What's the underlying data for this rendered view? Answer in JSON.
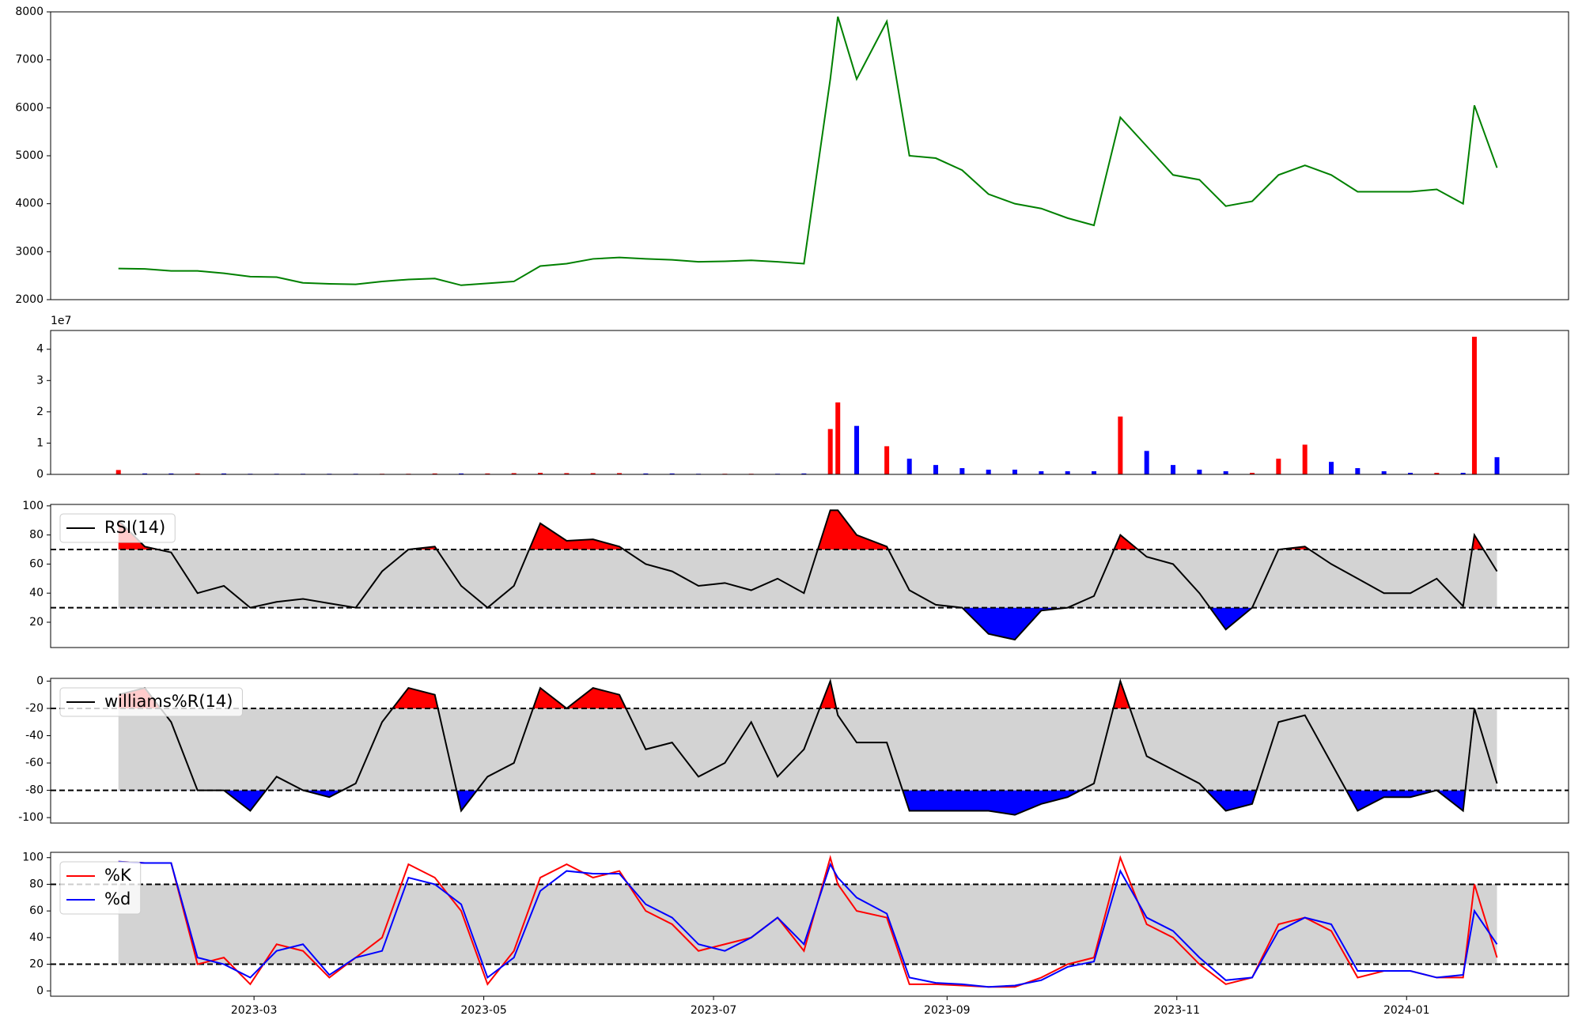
{
  "chart_data": [
    {
      "type": "line",
      "x": [
        "2023-01-24",
        "2023-01-31",
        "2023-02-07",
        "2023-02-14",
        "2023-02-21",
        "2023-02-28",
        "2023-03-07",
        "2023-03-14",
        "2023-03-21",
        "2023-03-28",
        "2023-04-04",
        "2023-04-11",
        "2023-04-18",
        "2023-04-25",
        "2023-05-02",
        "2023-05-09",
        "2023-05-16",
        "2023-05-23",
        "2023-05-30",
        "2023-06-06",
        "2023-06-13",
        "2023-06-20",
        "2023-06-27",
        "2023-07-04",
        "2023-07-11",
        "2023-07-18",
        "2023-07-25",
        "2023-08-01",
        "2023-08-03",
        "2023-08-08",
        "2023-08-16",
        "2023-08-22",
        "2023-08-29",
        "2023-09-05",
        "2023-09-12",
        "2023-09-19",
        "2023-09-26",
        "2023-10-03",
        "2023-10-10",
        "2023-10-17",
        "2023-10-24",
        "2023-10-31",
        "2023-11-07",
        "2023-11-14",
        "2023-11-21",
        "2023-11-28",
        "2023-12-05",
        "2023-12-12",
        "2023-12-19",
        "2023-12-26",
        "2024-01-02",
        "2024-01-09",
        "2024-01-16",
        "2024-01-19",
        "2024-01-25"
      ],
      "xlim": [
        "2023-01-06",
        "2024-02-13"
      ],
      "ylim": [
        2000,
        8000
      ],
      "yticks": [
        2000,
        3000,
        4000,
        5000,
        6000,
        7000,
        8000
      ],
      "series": [
        {
          "color": "green",
          "values": [
            2650,
            2640,
            2600,
            2600,
            2550,
            2480,
            2470,
            2350,
            2330,
            2320,
            2380,
            2420,
            2440,
            2300,
            2340,
            2380,
            2700,
            2750,
            2850,
            2880,
            2850,
            2830,
            2790,
            2800,
            2820,
            2790,
            2750,
            6600,
            7900,
            6600,
            7800,
            5000,
            4950,
            4700,
            4200,
            4000,
            3900,
            3700,
            3550,
            5800,
            5200,
            4600,
            4500,
            3950,
            4050,
            4600,
            4800,
            4600,
            4250,
            4250,
            4250,
            4300,
            4000,
            6050,
            4750
          ]
        }
      ]
    },
    {
      "type": "bar",
      "offset_label": "1e7",
      "ylim": [
        0,
        4.6
      ],
      "yticks": [
        0,
        1,
        2,
        3,
        4
      ],
      "values": [
        0.14,
        0.03,
        0.03,
        0.03,
        0.03,
        0.02,
        0.02,
        0.02,
        0.02,
        0.02,
        0.02,
        0.02,
        0.03,
        0.03,
        0.03,
        0.04,
        0.05,
        0.04,
        0.04,
        0.04,
        0.03,
        0.03,
        0.02,
        0.02,
        0.02,
        0.02,
        0.03,
        1.45,
        2.3,
        1.55,
        0.9,
        0.5,
        0.3,
        0.2,
        0.15,
        0.15,
        0.1,
        0.1,
        0.1,
        1.85,
        0.75,
        0.3,
        0.15,
        0.1,
        0.05,
        0.5,
        0.95,
        0.4,
        0.2,
        0.1,
        0.05,
        0.05,
        0.05,
        4.4,
        0.55
      ],
      "colors": [
        "red",
        "blue",
        "blue",
        "red",
        "blue",
        "blue",
        "blue",
        "blue",
        "blue",
        "blue",
        "red",
        "red",
        "red",
        "blue",
        "red",
        "red",
        "red",
        "red",
        "red",
        "red",
        "blue",
        "blue",
        "blue",
        "red",
        "red",
        "blue",
        "blue",
        "red",
        "red",
        "blue",
        "red",
        "blue",
        "blue",
        "blue",
        "blue",
        "blue",
        "blue",
        "blue",
        "blue",
        "red",
        "blue",
        "blue",
        "blue",
        "blue",
        "red",
        "red",
        "red",
        "blue",
        "blue",
        "blue",
        "blue",
        "red",
        "blue",
        "red",
        "blue"
      ]
    },
    {
      "type": "oscillator",
      "ylim": [
        2.6,
        101
      ],
      "yticks": [
        20,
        40,
        60,
        80,
        100
      ],
      "thresholds": [
        70,
        30
      ],
      "band_color": "lightgray",
      "upper_color": "red",
      "lower_color": "blue",
      "legend": "upper left",
      "series": [
        {
          "name": "RSI(14)",
          "color": "black",
          "values": [
            90,
            72,
            68,
            40,
            45,
            30,
            34,
            36,
            33,
            30,
            55,
            70,
            72,
            45,
            30,
            45,
            88,
            76,
            77,
            72,
            60,
            55,
            45,
            47,
            42,
            50,
            40,
            97,
            97,
            80,
            72,
            42,
            32,
            30,
            12,
            8,
            28,
            30,
            38,
            80,
            65,
            60,
            40,
            15,
            30,
            70,
            72,
            60,
            50,
            40,
            40,
            50,
            31,
            80,
            55
          ]
        }
      ]
    },
    {
      "type": "oscillator",
      "ylim": [
        -104,
        2
      ],
      "yticks": [
        0,
        -20,
        -40,
        -60,
        -80,
        -100
      ],
      "thresholds": [
        -20,
        -80
      ],
      "band_color": "lightgray",
      "upper_color": "red",
      "lower_color": "blue",
      "legend": "upper left",
      "series": [
        {
          "name": "williams%R(14)",
          "color": "black",
          "values": [
            -10,
            -5,
            -30,
            -80,
            -80,
            -95,
            -70,
            -80,
            -85,
            -75,
            -30,
            -5,
            -10,
            -95,
            -70,
            -60,
            -5,
            -20,
            -5,
            -10,
            -50,
            -45,
            -70,
            -60,
            -30,
            -70,
            -50,
            0,
            -25,
            -45,
            -45,
            -95,
            -95,
            -95,
            -95,
            -98,
            -90,
            -85,
            -75,
            0,
            -55,
            -65,
            -75,
            -95,
            -90,
            -30,
            -25,
            -60,
            -95,
            -85,
            -85,
            -80,
            -95,
            -20,
            -75
          ]
        }
      ]
    },
    {
      "type": "oscillator",
      "ylim": [
        -4,
        104
      ],
      "yticks": [
        0,
        20,
        40,
        60,
        80,
        100
      ],
      "thresholds": [
        80,
        20
      ],
      "band_color": "lightgray",
      "legend": "upper left",
      "xticks": [
        "2023-03",
        "2023-05",
        "2023-07",
        "2023-09",
        "2023-11",
        "2024-01"
      ],
      "series": [
        {
          "name": "%K",
          "color": "red",
          "values": [
            97,
            96,
            96,
            20,
            25,
            5,
            35,
            30,
            10,
            25,
            40,
            95,
            85,
            60,
            5,
            30,
            85,
            95,
            85,
            90,
            60,
            50,
            30,
            35,
            40,
            55,
            30,
            100,
            80,
            60,
            55,
            5,
            5,
            4,
            3,
            3,
            10,
            20,
            25,
            100,
            50,
            40,
            20,
            5,
            10,
            50,
            55,
            45,
            10,
            15,
            15,
            10,
            10,
            80,
            25
          ]
        },
        {
          "name": "%d",
          "color": "blue",
          "values": [
            97,
            96,
            96,
            25,
            20,
            10,
            30,
            35,
            12,
            25,
            30,
            85,
            80,
            65,
            10,
            25,
            75,
            90,
            88,
            88,
            65,
            55,
            35,
            30,
            40,
            55,
            35,
            95,
            85,
            70,
            58,
            10,
            6,
            5,
            3,
            4,
            8,
            18,
            22,
            90,
            55,
            45,
            25,
            8,
            10,
            45,
            55,
            50,
            15,
            15,
            15,
            10,
            12,
            60,
            35
          ]
        }
      ]
    }
  ]
}
